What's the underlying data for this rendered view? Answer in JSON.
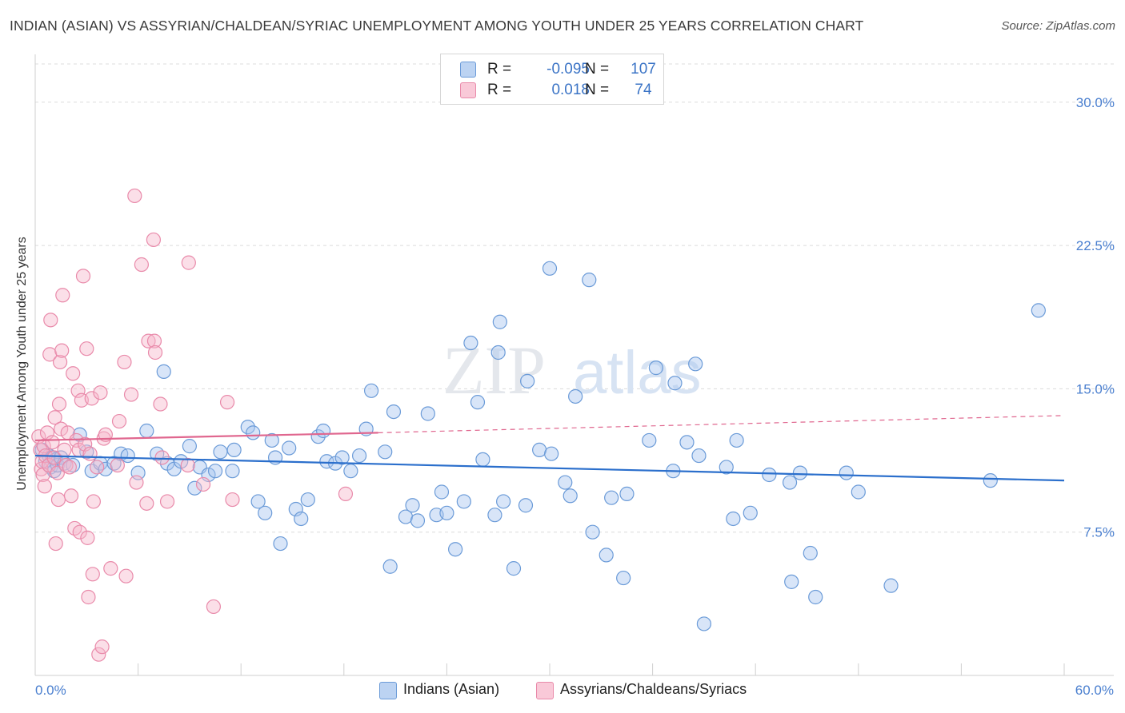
{
  "title": "INDIAN (ASIAN) VS ASSYRIAN/CHALDEAN/SYRIAC UNEMPLOYMENT AMONG YOUTH UNDER 25 YEARS CORRELATION CHART",
  "source": "Source: ZipAtlas.com",
  "watermark": {
    "zip": "ZIP",
    "atlas": "atlas"
  },
  "legend": {
    "rows": [
      {
        "r_label": "R =",
        "r_value": "-0.095",
        "n_label": "N =",
        "n_value": "107"
      },
      {
        "r_label": "R =",
        "r_value": "0.018",
        "n_label": "N =",
        "n_value": "74"
      }
    ]
  },
  "bottom_legend": {
    "series1": "Indians (Asian)",
    "series2": "Assyrians/Chaldeans/Syriacs"
  },
  "colors": {
    "blue_fill": "#a8c6ef",
    "blue_stroke": "#6b9bd8",
    "blue_line": "#2b6fcc",
    "pink_fill": "#f7b8cb",
    "pink_stroke": "#e98aaa",
    "pink_line": "#e0678f",
    "axis_label": "#4a7fcf",
    "grid": "#dcdcdc"
  },
  "chart_data": {
    "type": "scatter",
    "title": "INDIAN (ASIAN) VS ASSYRIAN/CHALDEAN/SYRIAC UNEMPLOYMENT AMONG YOUTH UNDER 25 YEARS CORRELATION CHART",
    "xlabel": "",
    "ylabel": "Unemployment Among Youth under 25 years",
    "xlim": [
      0,
      60
    ],
    "ylim": [
      0,
      32
    ],
    "x_tick_labels": [
      "0.0%",
      "60.0%"
    ],
    "y_ticks": [
      7.5,
      15.0,
      22.5,
      30.0
    ],
    "y_tick_labels": [
      "7.5%",
      "15.0%",
      "22.5%",
      "30.0%"
    ],
    "grid": true,
    "legend_position": "top-center",
    "series": [
      {
        "name": "Indians (Asian)",
        "R": -0.095,
        "N": 107,
        "trend": {
          "x": [
            0,
            60
          ],
          "y": [
            11.5,
            10.2
          ],
          "style": "solid"
        },
        "points": [
          [
            0.4,
            11.8
          ],
          [
            0.6,
            11.2
          ],
          [
            0.8,
            11.5
          ],
          [
            0.9,
            10.9
          ],
          [
            1.0,
            11.4
          ],
          [
            1.1,
            10.7
          ],
          [
            1.2,
            11.3
          ],
          [
            1.3,
            11.0
          ],
          [
            1.5,
            11.4
          ],
          [
            1.7,
            11.1
          ],
          [
            2.2,
            11.0
          ],
          [
            2.6,
            12.6
          ],
          [
            3.0,
            11.7
          ],
          [
            3.3,
            10.7
          ],
          [
            3.8,
            11.1
          ],
          [
            4.1,
            10.8
          ],
          [
            4.6,
            11.1
          ],
          [
            5.0,
            11.6
          ],
          [
            5.4,
            11.5
          ],
          [
            6.0,
            10.6
          ],
          [
            6.5,
            12.8
          ],
          [
            7.1,
            11.6
          ],
          [
            7.5,
            15.9
          ],
          [
            7.7,
            11.1
          ],
          [
            8.1,
            10.8
          ],
          [
            8.5,
            11.2
          ],
          [
            9.0,
            12.0
          ],
          [
            9.3,
            9.8
          ],
          [
            9.6,
            10.9
          ],
          [
            10.1,
            10.5
          ],
          [
            10.5,
            10.7
          ],
          [
            10.8,
            11.7
          ],
          [
            11.5,
            10.7
          ],
          [
            11.6,
            11.8
          ],
          [
            12.4,
            13.0
          ],
          [
            12.7,
            12.7
          ],
          [
            13.0,
            9.1
          ],
          [
            13.4,
            8.5
          ],
          [
            13.8,
            12.3
          ],
          [
            14.0,
            11.4
          ],
          [
            14.3,
            6.9
          ],
          [
            14.8,
            11.9
          ],
          [
            15.2,
            8.7
          ],
          [
            15.5,
            8.2
          ],
          [
            15.9,
            9.2
          ],
          [
            16.5,
            12.5
          ],
          [
            16.8,
            12.8
          ],
          [
            17.0,
            11.2
          ],
          [
            17.5,
            11.1
          ],
          [
            17.9,
            11.4
          ],
          [
            18.4,
            10.7
          ],
          [
            18.9,
            11.5
          ],
          [
            19.3,
            12.9
          ],
          [
            19.6,
            14.9
          ],
          [
            20.4,
            11.7
          ],
          [
            20.7,
            5.7
          ],
          [
            20.9,
            13.8
          ],
          [
            21.6,
            8.3
          ],
          [
            22.0,
            8.9
          ],
          [
            22.3,
            8.1
          ],
          [
            22.9,
            13.7
          ],
          [
            23.4,
            8.4
          ],
          [
            23.7,
            9.6
          ],
          [
            24.0,
            8.5
          ],
          [
            24.5,
            6.6
          ],
          [
            25.0,
            9.1
          ],
          [
            25.4,
            17.4
          ],
          [
            25.8,
            14.3
          ],
          [
            26.1,
            11.3
          ],
          [
            26.8,
            8.4
          ],
          [
            27.0,
            16.9
          ],
          [
            27.1,
            18.5
          ],
          [
            27.3,
            9.1
          ],
          [
            27.9,
            5.6
          ],
          [
            28.6,
            8.9
          ],
          [
            28.7,
            15.4
          ],
          [
            29.4,
            11.8
          ],
          [
            30.0,
            21.3
          ],
          [
            30.1,
            11.6
          ],
          [
            30.9,
            10.1
          ],
          [
            31.2,
            9.4
          ],
          [
            31.5,
            14.6
          ],
          [
            32.3,
            20.7
          ],
          [
            32.5,
            7.5
          ],
          [
            33.3,
            6.3
          ],
          [
            33.6,
            9.3
          ],
          [
            34.3,
            5.1
          ],
          [
            34.5,
            9.5
          ],
          [
            35.8,
            12.3
          ],
          [
            36.2,
            16.1
          ],
          [
            37.2,
            10.7
          ],
          [
            37.3,
            15.3
          ],
          [
            38.0,
            12.2
          ],
          [
            38.5,
            16.3
          ],
          [
            38.7,
            11.5
          ],
          [
            39.0,
            2.7
          ],
          [
            40.3,
            10.9
          ],
          [
            40.7,
            8.2
          ],
          [
            40.9,
            12.3
          ],
          [
            41.7,
            8.5
          ],
          [
            42.8,
            10.5
          ],
          [
            44.0,
            10.1
          ],
          [
            44.1,
            4.9
          ],
          [
            45.2,
            6.4
          ],
          [
            45.5,
            4.1
          ],
          [
            47.3,
            10.6
          ],
          [
            48.0,
            9.6
          ],
          [
            49.9,
            4.7
          ],
          [
            55.7,
            10.2
          ],
          [
            58.5,
            19.1
          ],
          [
            44.6,
            10.6
          ]
        ]
      },
      {
        "name": "Assyrians/Chaldeans/Syriacs",
        "R": 0.018,
        "N": 74,
        "trend": {
          "x": [
            0,
            20
          ],
          "y": [
            12.3,
            12.7
          ],
          "style": "solid",
          "dashed_extension": {
            "x": [
              20,
              60
            ],
            "y": [
              12.7,
              13.6
            ]
          }
        },
        "points": [
          [
            0.2,
            12.5
          ],
          [
            0.3,
            11.8
          ],
          [
            0.35,
            10.8
          ],
          [
            0.4,
            11.2
          ],
          [
            0.45,
            10.5
          ],
          [
            0.5,
            12.0
          ],
          [
            0.55,
            9.9
          ],
          [
            0.6,
            11.5
          ],
          [
            0.7,
            12.7
          ],
          [
            0.8,
            11.0
          ],
          [
            0.85,
            16.8
          ],
          [
            0.9,
            18.6
          ],
          [
            1.0,
            12.2
          ],
          [
            1.1,
            11.4
          ],
          [
            1.15,
            13.5
          ],
          [
            1.2,
            6.9
          ],
          [
            1.3,
            10.6
          ],
          [
            1.35,
            9.2
          ],
          [
            1.4,
            14.2
          ],
          [
            1.45,
            16.4
          ],
          [
            1.5,
            12.9
          ],
          [
            1.55,
            17.0
          ],
          [
            1.6,
            19.9
          ],
          [
            1.7,
            11.8
          ],
          [
            1.8,
            11.0
          ],
          [
            1.9,
            12.7
          ],
          [
            2.0,
            10.9
          ],
          [
            2.1,
            9.4
          ],
          [
            2.2,
            15.8
          ],
          [
            2.3,
            7.7
          ],
          [
            2.4,
            12.3
          ],
          [
            2.5,
            14.9
          ],
          [
            2.55,
            11.8
          ],
          [
            2.6,
            7.5
          ],
          [
            2.7,
            14.4
          ],
          [
            2.8,
            20.9
          ],
          [
            2.9,
            12.1
          ],
          [
            3.0,
            17.1
          ],
          [
            3.05,
            7.2
          ],
          [
            3.1,
            4.1
          ],
          [
            3.2,
            11.6
          ],
          [
            3.3,
            14.5
          ],
          [
            3.35,
            5.3
          ],
          [
            3.4,
            9.1
          ],
          [
            3.6,
            10.9
          ],
          [
            3.7,
            1.1
          ],
          [
            3.8,
            14.8
          ],
          [
            3.9,
            1.5
          ],
          [
            4.0,
            12.4
          ],
          [
            4.1,
            12.6
          ],
          [
            4.4,
            5.6
          ],
          [
            4.8,
            11.0
          ],
          [
            4.9,
            13.3
          ],
          [
            5.2,
            16.4
          ],
          [
            5.3,
            5.2
          ],
          [
            5.6,
            14.7
          ],
          [
            5.8,
            25.1
          ],
          [
            5.9,
            10.1
          ],
          [
            6.2,
            21.5
          ],
          [
            6.5,
            9.0
          ],
          [
            6.6,
            17.5
          ],
          [
            6.9,
            22.8
          ],
          [
            6.95,
            17.5
          ],
          [
            7.0,
            16.9
          ],
          [
            7.3,
            14.2
          ],
          [
            7.4,
            11.4
          ],
          [
            7.7,
            9.1
          ],
          [
            8.9,
            11.0
          ],
          [
            8.95,
            21.6
          ],
          [
            9.8,
            10.0
          ],
          [
            10.4,
            3.6
          ],
          [
            11.2,
            14.3
          ],
          [
            11.5,
            9.2
          ],
          [
            18.1,
            9.5
          ]
        ]
      }
    ]
  }
}
